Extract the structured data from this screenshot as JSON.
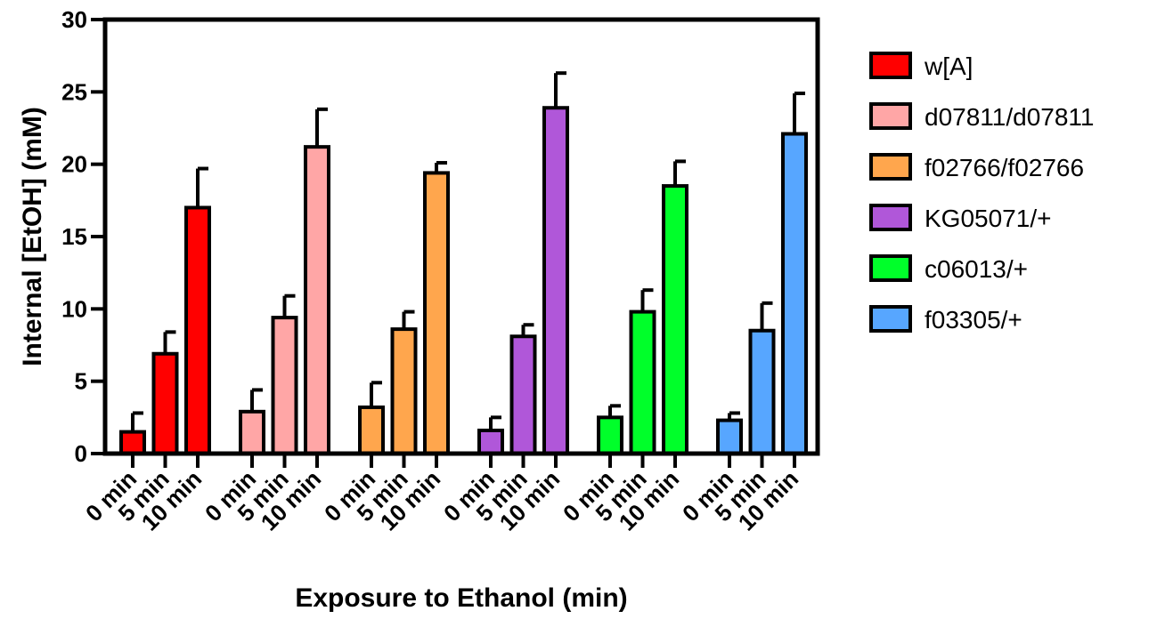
{
  "chart_data": {
    "type": "bar",
    "xlabel": "Exposure to Ethanol (min)",
    "ylabel": "Internal [EtOH] (mM)",
    "ylim": [
      0,
      30
    ],
    "yticks": [
      "0",
      "5",
      "10",
      "15",
      "20",
      "25",
      "30"
    ],
    "categories": [
      "0 min",
      "5 min",
      "10 min"
    ],
    "tick_labels": [
      "0 min",
      "5 min",
      "10 min",
      "0 min",
      "5 min",
      "10 min",
      "0 min",
      "5 min",
      "10 min",
      "0 min",
      "5 min",
      "10 min",
      "0 min",
      "5 min",
      "10 min",
      "0 min",
      "5 min",
      "10 min"
    ],
    "legend_position": "right",
    "series": [
      {
        "name": "w[A]",
        "color": "#ff0000",
        "values": [
          1.5,
          6.9,
          17.0
        ],
        "errors": [
          1.3,
          1.5,
          2.7
        ]
      },
      {
        "name": "d07811/d07811",
        "color": "#ffa6a6",
        "values": [
          2.9,
          9.4,
          21.2
        ],
        "errors": [
          1.5,
          1.5,
          2.6
        ]
      },
      {
        "name": "f02766/f02766",
        "color": "#ffa64d",
        "values": [
          3.2,
          8.6,
          19.4
        ],
        "errors": [
          1.7,
          1.2,
          0.7
        ]
      },
      {
        "name": "KG05071/+",
        "color": "#b057d9",
        "values": [
          1.6,
          8.1,
          23.9
        ],
        "errors": [
          0.9,
          0.8,
          2.4
        ]
      },
      {
        "name": "c06013/+",
        "color": "#00ff2a",
        "values": [
          2.5,
          9.8,
          18.5
        ],
        "errors": [
          0.8,
          1.5,
          1.7
        ]
      },
      {
        "name": "f03305/+",
        "color": "#57a6ff",
        "values": [
          2.3,
          8.5,
          22.1
        ],
        "errors": [
          0.5,
          1.9,
          2.8
        ]
      }
    ]
  }
}
